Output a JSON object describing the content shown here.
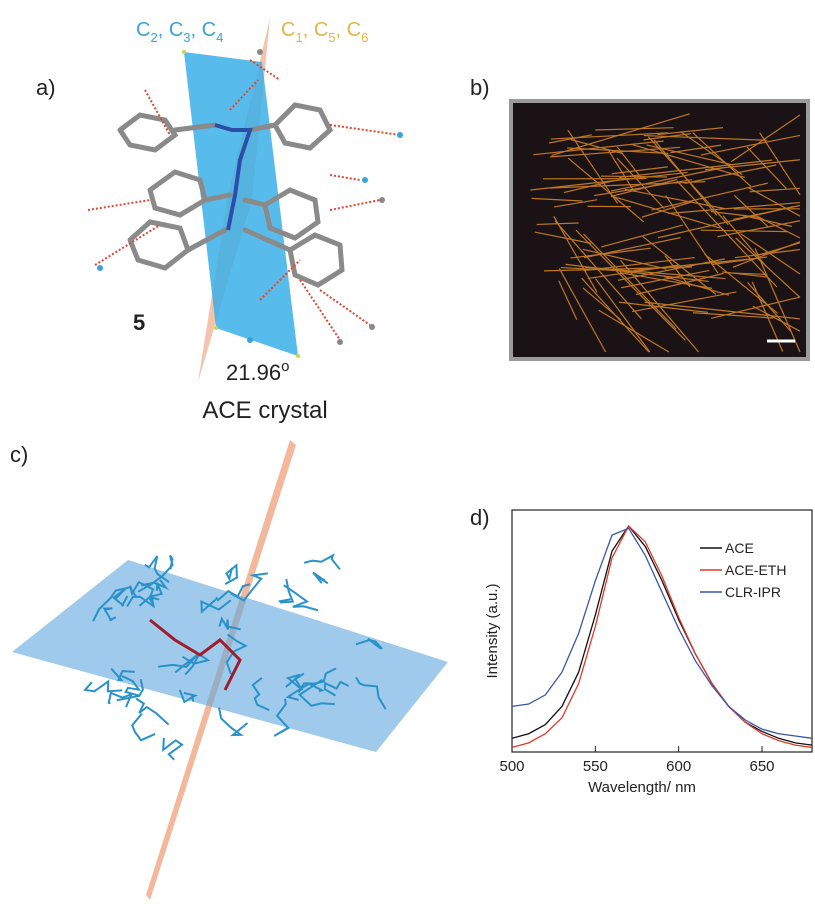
{
  "figure": {
    "panel_labels": [
      "a)",
      "b)",
      "c)",
      "d)"
    ],
    "plane_labels": [
      {
        "atoms": [
          [
            "C",
            "2"
          ],
          [
            "C",
            "3"
          ],
          [
            "C",
            "4"
          ]
        ],
        "separator": ", ",
        "color": "#3aa3d8"
      },
      {
        "atoms": [
          [
            "C",
            "1"
          ],
          [
            "C",
            "5"
          ],
          [
            "C",
            "6"
          ]
        ],
        "separator": ", ",
        "color": "#e8b347"
      }
    ],
    "compound": "5",
    "angle": {
      "value": "21.96",
      "superscript": "o"
    },
    "caption": "ACE crystal"
  },
  "chart_data": {
    "type": "line",
    "xlabel": "Wavelength/ nm",
    "ylabel": "Intensity (a.u.)",
    "x": [
      500,
      510,
      520,
      530,
      540,
      550,
      560,
      570,
      580,
      590,
      600,
      610,
      620,
      630,
      640,
      650,
      660,
      670,
      680
    ],
    "series": [
      {
        "name": "ACE",
        "color": "#111111",
        "values": [
          0.06,
          0.08,
          0.12,
          0.2,
          0.35,
          0.6,
          0.88,
          0.99,
          0.9,
          0.75,
          0.58,
          0.43,
          0.3,
          0.2,
          0.13,
          0.09,
          0.06,
          0.04,
          0.03
        ]
      },
      {
        "name": "ACE-ETH",
        "color": "#e0392b",
        "values": [
          0.02,
          0.04,
          0.08,
          0.15,
          0.3,
          0.55,
          0.85,
          0.99,
          0.92,
          0.77,
          0.59,
          0.43,
          0.3,
          0.2,
          0.13,
          0.08,
          0.05,
          0.03,
          0.02
        ]
      },
      {
        "name": "CLR-IPR",
        "color": "#3a55a8",
        "values": [
          0.2,
          0.21,
          0.25,
          0.35,
          0.52,
          0.75,
          0.95,
          0.98,
          0.86,
          0.7,
          0.54,
          0.4,
          0.29,
          0.2,
          0.14,
          0.1,
          0.08,
          0.07,
          0.06
        ]
      }
    ],
    "xlim": [
      500,
      680
    ],
    "xticks": [
      500,
      550,
      600,
      650
    ],
    "ylim": [
      0,
      1.06
    ]
  }
}
